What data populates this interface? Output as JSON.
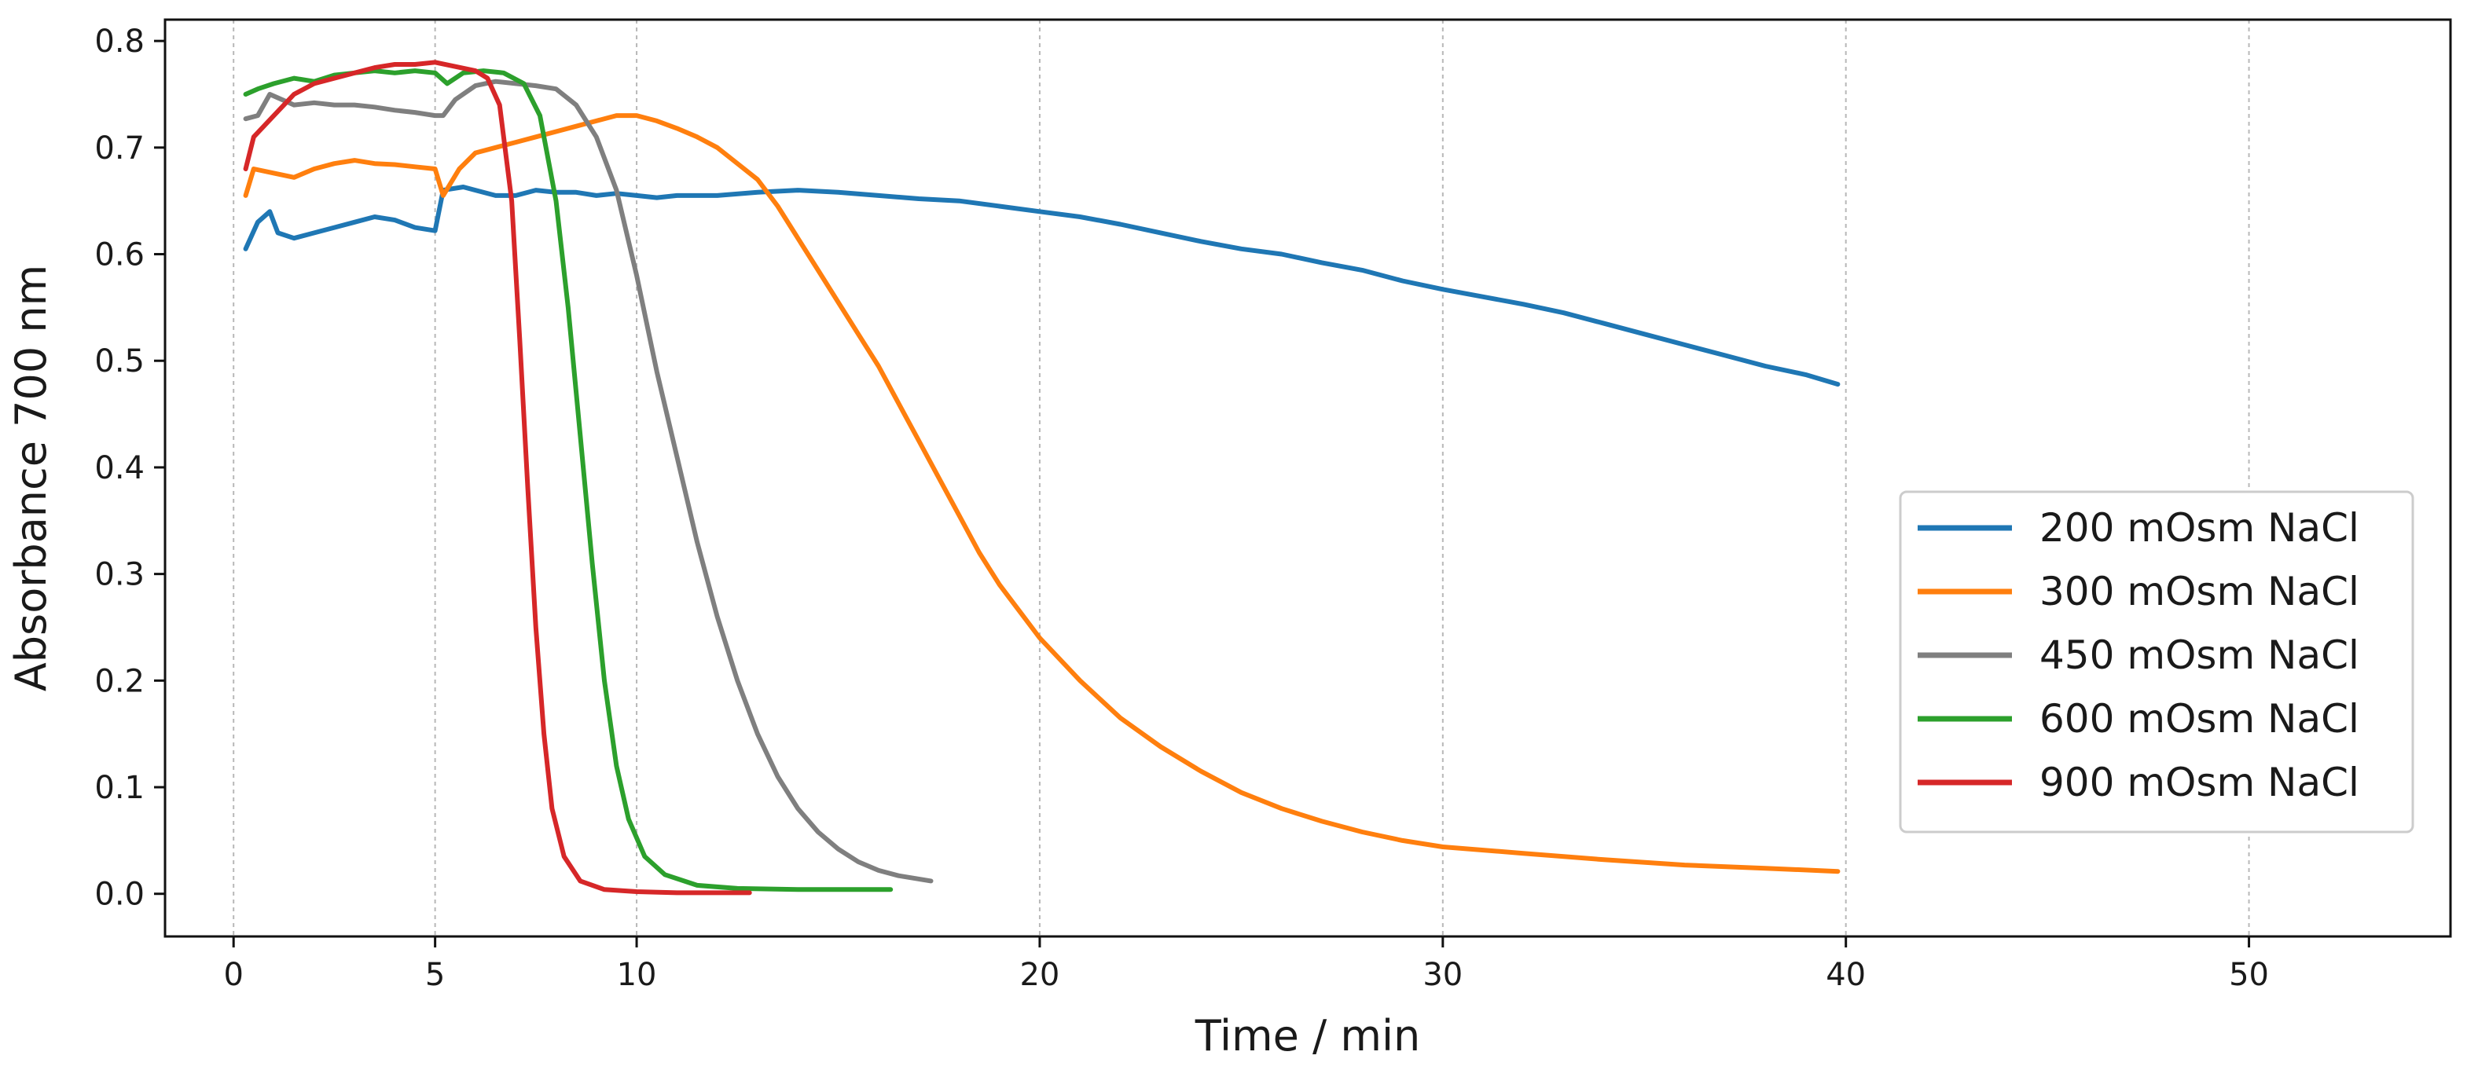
{
  "chart_data": {
    "type": "line",
    "xlabel": "Time / min",
    "ylabel": "Absorbance 700 nm",
    "xlim": [
      -1.7,
      55.0
    ],
    "ylim": [
      -0.04,
      0.82
    ],
    "xticks": [
      0,
      5,
      10,
      20,
      30,
      40,
      50
    ],
    "yticks": [
      0.0,
      0.1,
      0.2,
      0.3,
      0.4,
      0.5,
      0.6,
      0.7,
      0.8
    ],
    "xtick_labels": [
      "0",
      "5",
      "10",
      "20",
      "30",
      "40",
      "50"
    ],
    "ytick_labels": [
      "0.0",
      "0.1",
      "0.2",
      "0.3",
      "0.4",
      "0.5",
      "0.6",
      "0.7",
      "0.8"
    ],
    "grid": "vertical dashed",
    "legend_position": "lower-right",
    "series": [
      {
        "name": "200 mOsm NaCl",
        "color": "#1f77b4",
        "points": [
          [
            0.3,
            0.605
          ],
          [
            0.6,
            0.63
          ],
          [
            0.9,
            0.64
          ],
          [
            1.1,
            0.62
          ],
          [
            1.5,
            0.615
          ],
          [
            2,
            0.62
          ],
          [
            2.5,
            0.625
          ],
          [
            3,
            0.63
          ],
          [
            3.5,
            0.635
          ],
          [
            4,
            0.632
          ],
          [
            4.5,
            0.625
          ],
          [
            5,
            0.622
          ],
          [
            5.2,
            0.66
          ],
          [
            5.7,
            0.663
          ],
          [
            6,
            0.66
          ],
          [
            6.5,
            0.655
          ],
          [
            7,
            0.655
          ],
          [
            7.5,
            0.66
          ],
          [
            8,
            0.658
          ],
          [
            8.5,
            0.658
          ],
          [
            9,
            0.655
          ],
          [
            9.5,
            0.657
          ],
          [
            10,
            0.655
          ],
          [
            10.5,
            0.653
          ],
          [
            11,
            0.655
          ],
          [
            12,
            0.655
          ],
          [
            13,
            0.658
          ],
          [
            14,
            0.66
          ],
          [
            15,
            0.658
          ],
          [
            16,
            0.655
          ],
          [
            17,
            0.652
          ],
          [
            18,
            0.65
          ],
          [
            19,
            0.645
          ],
          [
            20,
            0.64
          ],
          [
            21,
            0.635
          ],
          [
            22,
            0.628
          ],
          [
            23,
            0.62
          ],
          [
            24,
            0.612
          ],
          [
            25,
            0.605
          ],
          [
            26,
            0.6
          ],
          [
            27,
            0.592
          ],
          [
            28,
            0.585
          ],
          [
            29,
            0.575
          ],
          [
            30,
            0.567
          ],
          [
            31,
            0.56
          ],
          [
            32,
            0.553
          ],
          [
            33,
            0.545
          ],
          [
            34,
            0.535
          ],
          [
            35,
            0.525
          ],
          [
            36,
            0.515
          ],
          [
            37,
            0.505
          ],
          [
            38,
            0.495
          ],
          [
            39,
            0.487
          ],
          [
            39.8,
            0.478
          ]
        ]
      },
      {
        "name": "300 mOsm NaCl",
        "color": "#ff7f0e",
        "points": [
          [
            0.3,
            0.655
          ],
          [
            0.5,
            0.68
          ],
          [
            1,
            0.676
          ],
          [
            1.5,
            0.672
          ],
          [
            2,
            0.68
          ],
          [
            2.5,
            0.685
          ],
          [
            3,
            0.688
          ],
          [
            3.5,
            0.685
          ],
          [
            4,
            0.684
          ],
          [
            4.5,
            0.682
          ],
          [
            5,
            0.68
          ],
          [
            5.2,
            0.655
          ],
          [
            5.6,
            0.68
          ],
          [
            6,
            0.695
          ],
          [
            6.5,
            0.7
          ],
          [
            7,
            0.705
          ],
          [
            7.5,
            0.71
          ],
          [
            8,
            0.715
          ],
          [
            8.5,
            0.72
          ],
          [
            9,
            0.725
          ],
          [
            9.5,
            0.73
          ],
          [
            10,
            0.73
          ],
          [
            10.5,
            0.725
          ],
          [
            11,
            0.718
          ],
          [
            11.5,
            0.71
          ],
          [
            12,
            0.7
          ],
          [
            12.5,
            0.685
          ],
          [
            13,
            0.67
          ],
          [
            13.5,
            0.645
          ],
          [
            14,
            0.615
          ],
          [
            14.5,
            0.585
          ],
          [
            15,
            0.555
          ],
          [
            15.5,
            0.525
          ],
          [
            16,
            0.495
          ],
          [
            16.5,
            0.46
          ],
          [
            17,
            0.425
          ],
          [
            17.5,
            0.39
          ],
          [
            18,
            0.355
          ],
          [
            18.5,
            0.32
          ],
          [
            19,
            0.29
          ],
          [
            19.5,
            0.265
          ],
          [
            20,
            0.24
          ],
          [
            21,
            0.2
          ],
          [
            22,
            0.165
          ],
          [
            23,
            0.138
          ],
          [
            24,
            0.115
          ],
          [
            25,
            0.095
          ],
          [
            26,
            0.08
          ],
          [
            27,
            0.068
          ],
          [
            28,
            0.058
          ],
          [
            29,
            0.05
          ],
          [
            30,
            0.044
          ],
          [
            32,
            0.038
          ],
          [
            34,
            0.032
          ],
          [
            36,
            0.027
          ],
          [
            38,
            0.024
          ],
          [
            39.8,
            0.021
          ]
        ]
      },
      {
        "name": "450 mOsm NaCl",
        "color": "#7f7f7f",
        "points": [
          [
            0.3,
            0.727
          ],
          [
            0.6,
            0.73
          ],
          [
            0.9,
            0.75
          ],
          [
            1.2,
            0.745
          ],
          [
            1.5,
            0.74
          ],
          [
            2,
            0.742
          ],
          [
            2.5,
            0.74
          ],
          [
            3,
            0.74
          ],
          [
            3.5,
            0.738
          ],
          [
            4,
            0.735
          ],
          [
            4.5,
            0.733
          ],
          [
            5,
            0.73
          ],
          [
            5.2,
            0.73
          ],
          [
            5.5,
            0.745
          ],
          [
            6,
            0.758
          ],
          [
            6.5,
            0.762
          ],
          [
            7,
            0.76
          ],
          [
            7.5,
            0.758
          ],
          [
            8,
            0.755
          ],
          [
            8.5,
            0.74
          ],
          [
            9,
            0.71
          ],
          [
            9.5,
            0.66
          ],
          [
            10,
            0.58
          ],
          [
            10.5,
            0.49
          ],
          [
            11,
            0.41
          ],
          [
            11.5,
            0.33
          ],
          [
            12,
            0.26
          ],
          [
            12.5,
            0.2
          ],
          [
            13,
            0.15
          ],
          [
            13.5,
            0.11
          ],
          [
            14,
            0.08
          ],
          [
            14.5,
            0.058
          ],
          [
            15,
            0.042
          ],
          [
            15.5,
            0.03
          ],
          [
            16,
            0.022
          ],
          [
            16.5,
            0.017
          ],
          [
            17.3,
            0.012
          ]
        ]
      },
      {
        "name": "600 mOsm NaCl",
        "color": "#2ca02c",
        "points": [
          [
            0.3,
            0.75
          ],
          [
            0.6,
            0.755
          ],
          [
            1,
            0.76
          ],
          [
            1.5,
            0.765
          ],
          [
            2,
            0.762
          ],
          [
            2.5,
            0.768
          ],
          [
            3,
            0.77
          ],
          [
            3.5,
            0.772
          ],
          [
            4,
            0.77
          ],
          [
            4.5,
            0.772
          ],
          [
            5,
            0.77
          ],
          [
            5.3,
            0.76
          ],
          [
            5.7,
            0.77
          ],
          [
            6.2,
            0.772
          ],
          [
            6.7,
            0.77
          ],
          [
            7.2,
            0.76
          ],
          [
            7.6,
            0.73
          ],
          [
            8,
            0.65
          ],
          [
            8.3,
            0.55
          ],
          [
            8.6,
            0.43
          ],
          [
            8.9,
            0.31
          ],
          [
            9.2,
            0.2
          ],
          [
            9.5,
            0.12
          ],
          [
            9.8,
            0.07
          ],
          [
            10.2,
            0.035
          ],
          [
            10.7,
            0.018
          ],
          [
            11.5,
            0.008
          ],
          [
            12.5,
            0.005
          ],
          [
            14,
            0.004
          ],
          [
            16.3,
            0.004
          ]
        ]
      },
      {
        "name": "900 mOsm NaCl",
        "color": "#d62728",
        "points": [
          [
            0.3,
            0.68
          ],
          [
            0.5,
            0.71
          ],
          [
            1,
            0.73
          ],
          [
            1.5,
            0.75
          ],
          [
            2,
            0.76
          ],
          [
            2.5,
            0.765
          ],
          [
            3,
            0.77
          ],
          [
            3.5,
            0.775
          ],
          [
            4,
            0.778
          ],
          [
            4.5,
            0.778
          ],
          [
            5,
            0.78
          ],
          [
            5.5,
            0.776
          ],
          [
            6,
            0.772
          ],
          [
            6.3,
            0.765
          ],
          [
            6.6,
            0.74
          ],
          [
            6.9,
            0.65
          ],
          [
            7.1,
            0.52
          ],
          [
            7.3,
            0.38
          ],
          [
            7.5,
            0.25
          ],
          [
            7.7,
            0.15
          ],
          [
            7.9,
            0.08
          ],
          [
            8.2,
            0.035
          ],
          [
            8.6,
            0.012
          ],
          [
            9.2,
            0.004
          ],
          [
            10,
            0.002
          ],
          [
            11,
            0.001
          ],
          [
            12.8,
            0.001
          ]
        ]
      }
    ]
  }
}
